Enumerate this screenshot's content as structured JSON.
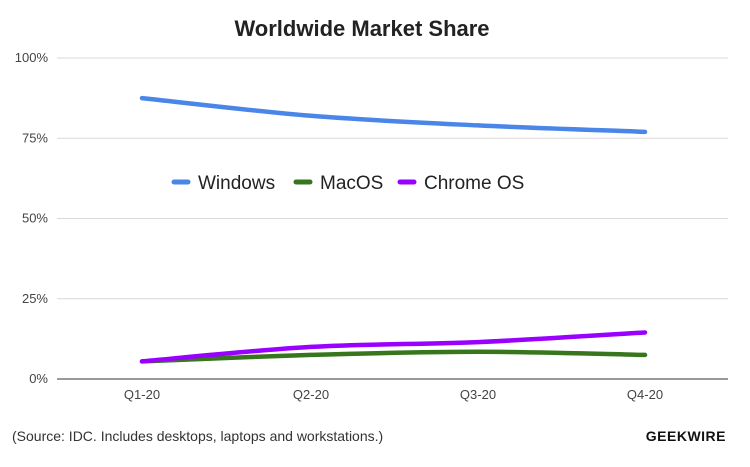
{
  "chart_data": {
    "type": "line",
    "title": "Worldwide Market Share",
    "categories": [
      "Q1-20",
      "Q2-20",
      "Q3-20",
      "Q4-20"
    ],
    "y_ticks": [
      "0%",
      "25%",
      "50%",
      "75%",
      "100%"
    ],
    "ylim": [
      0,
      100
    ],
    "grid": true,
    "legend_position": "center",
    "series": [
      {
        "name": "Windows",
        "color": "#4a86e8",
        "values": [
          87.5,
          82,
          79,
          77
        ]
      },
      {
        "name": "MacOS",
        "color": "#38761d",
        "values": [
          5.5,
          7.5,
          8.5,
          7.5
        ]
      },
      {
        "name": "Chrome OS",
        "color": "#9900ff",
        "values": [
          5.5,
          10,
          11.5,
          14.5
        ]
      }
    ]
  },
  "footer": {
    "source": "(Source: IDC. Includes desktops, laptops and workstations.)",
    "brand": "GEEKWIRE"
  }
}
